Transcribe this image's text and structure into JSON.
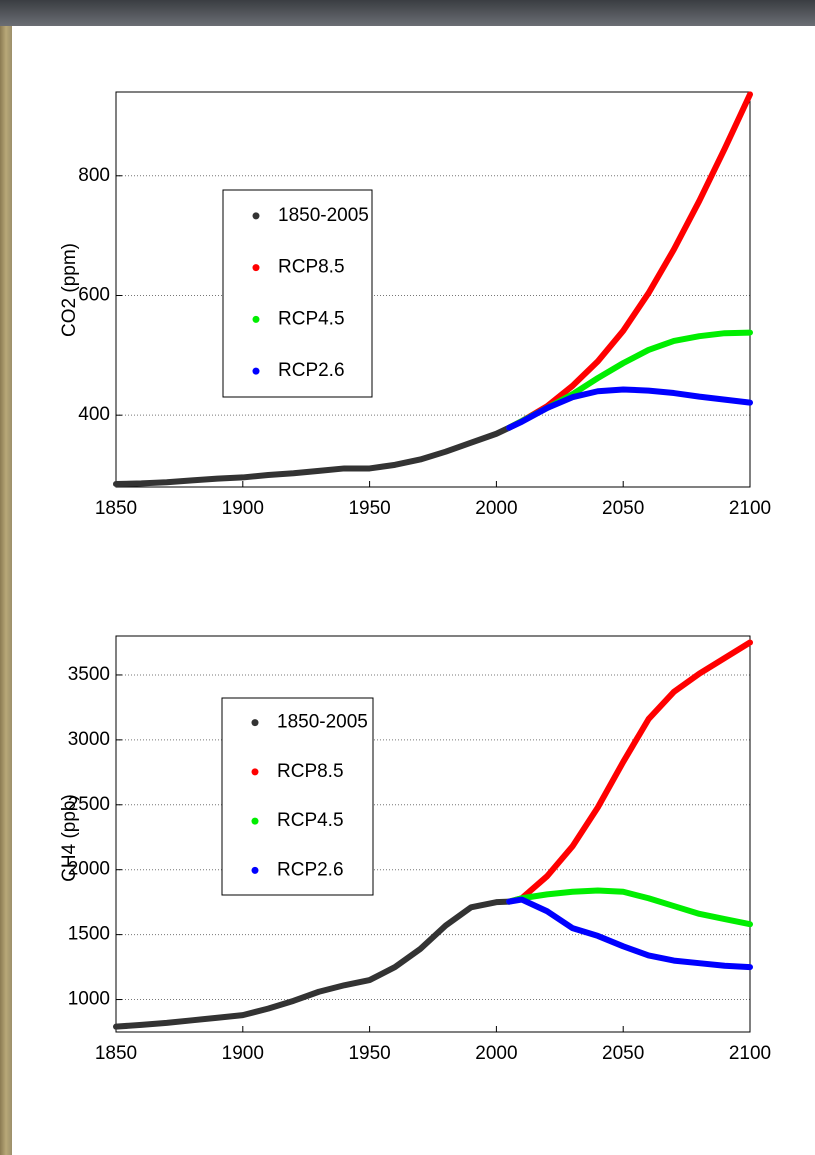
{
  "chart_data": [
    {
      "type": "line",
      "ylabel": "CO2 (ppm)",
      "x": [
        1850,
        1860,
        1870,
        1880,
        1890,
        1900,
        1910,
        1920,
        1930,
        1940,
        1950,
        1960,
        1970,
        1980,
        1990,
        2000,
        2005,
        2010,
        2020,
        2030,
        2040,
        2050,
        2060,
        2070,
        2080,
        2090,
        2100
      ],
      "series": [
        {
          "name": "1850-2005",
          "color": "#333333",
          "values": [
            285,
            286,
            288,
            291,
            294,
            296,
            300,
            303,
            307,
            311,
            311,
            317,
            326,
            339,
            354,
            369,
            379,
            null,
            null,
            null,
            null,
            null,
            null,
            null,
            null,
            null,
            null
          ]
        },
        {
          "name": "RCP8.5",
          "color": "#ff0000",
          "values": [
            null,
            null,
            null,
            null,
            null,
            null,
            null,
            null,
            null,
            null,
            null,
            null,
            null,
            null,
            null,
            null,
            379,
            390,
            415,
            449,
            490,
            541,
            604,
            677,
            758,
            845,
            936
          ]
        },
        {
          "name": "RCP4.5",
          "color": "#00ee00",
          "values": [
            null,
            null,
            null,
            null,
            null,
            null,
            null,
            null,
            null,
            null,
            null,
            null,
            null,
            null,
            null,
            null,
            379,
            390,
            412,
            435,
            462,
            487,
            509,
            524,
            532,
            537,
            538
          ]
        },
        {
          "name": "RCP2.6",
          "color": "#0000ff",
          "values": [
            null,
            null,
            null,
            null,
            null,
            null,
            null,
            null,
            null,
            null,
            null,
            null,
            null,
            null,
            null,
            null,
            379,
            389,
            412,
            430,
            440,
            443,
            441,
            437,
            431,
            426,
            421
          ]
        }
      ],
      "xlim": [
        1850,
        2100
      ],
      "xticks": [
        1850,
        1900,
        1950,
        2000,
        2050,
        2100
      ],
      "ylim": [
        280,
        940
      ],
      "yticks": [
        400,
        600,
        800
      ],
      "grid": true
    },
    {
      "type": "line",
      "ylabel": "CH4 (ppb)",
      "x": [
        1850,
        1860,
        1870,
        1880,
        1890,
        1900,
        1910,
        1920,
        1930,
        1940,
        1950,
        1960,
        1970,
        1980,
        1990,
        2000,
        2005,
        2010,
        2020,
        2030,
        2040,
        2050,
        2060,
        2070,
        2080,
        2090,
        2100
      ],
      "series": [
        {
          "name": "1850-2005",
          "color": "#333333",
          "values": [
            791,
            805,
            820,
            840,
            860,
            880,
            930,
            990,
            1060,
            1110,
            1150,
            1250,
            1390,
            1570,
            1710,
            1750,
            1754,
            null,
            null,
            null,
            null,
            null,
            null,
            null,
            null,
            null,
            null
          ]
        },
        {
          "name": "RCP8.5",
          "color": "#ff0000",
          "values": [
            null,
            null,
            null,
            null,
            null,
            null,
            null,
            null,
            null,
            null,
            null,
            null,
            null,
            null,
            null,
            null,
            1754,
            1780,
            1950,
            2180,
            2480,
            2830,
            3160,
            3370,
            3510,
            3630,
            3750
          ]
        },
        {
          "name": "RCP4.5",
          "color": "#00ee00",
          "values": [
            null,
            null,
            null,
            null,
            null,
            null,
            null,
            null,
            null,
            null,
            null,
            null,
            null,
            null,
            null,
            null,
            1754,
            1780,
            1810,
            1830,
            1840,
            1830,
            1780,
            1720,
            1660,
            1620,
            1580
          ]
        },
        {
          "name": "RCP2.6",
          "color": "#0000ff",
          "values": [
            null,
            null,
            null,
            null,
            null,
            null,
            null,
            null,
            null,
            null,
            null,
            null,
            null,
            null,
            null,
            null,
            1754,
            1770,
            1680,
            1550,
            1490,
            1410,
            1340,
            1300,
            1280,
            1260,
            1250
          ]
        }
      ],
      "xlim": [
        1850,
        2100
      ],
      "xticks": [
        1850,
        1900,
        1950,
        2000,
        2050,
        2100
      ],
      "ylim": [
        750,
        3800
      ],
      "yticks": [
        1000,
        1500,
        2000,
        2500,
        3000,
        3500
      ],
      "grid": true
    }
  ]
}
